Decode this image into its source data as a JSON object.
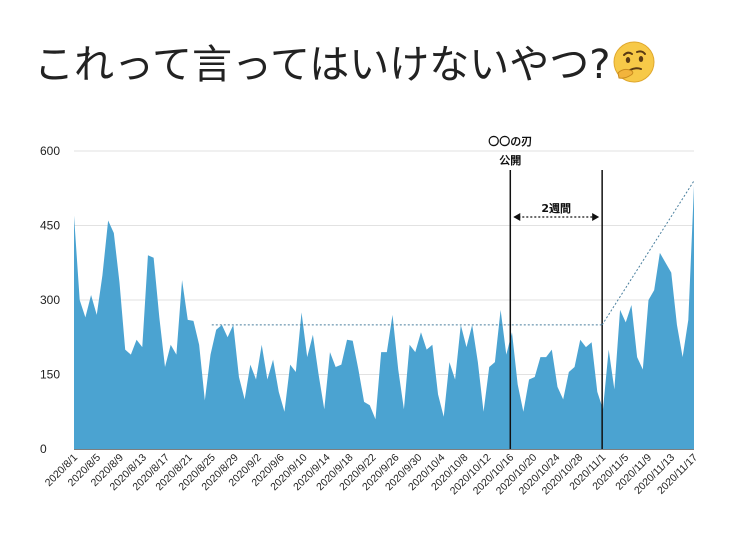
{
  "slide": {
    "title": "これって言ってはいけないやつ?",
    "emoji_icon": "thinking-face-icon"
  },
  "chart_data": {
    "type": "area",
    "title": "",
    "xlabel": "",
    "ylabel": "",
    "ylim": [
      0,
      600
    ],
    "yticks": [
      0,
      150,
      300,
      450,
      600
    ],
    "grid": true,
    "fill_color": "#4ba3d1",
    "x_tick_labels": [
      "2020/8/1",
      "2020/8/5",
      "2020/8/9",
      "2020/8/13",
      "2020/8/17",
      "2020/8/21",
      "2020/8/25",
      "2020/8/29",
      "2020/9/2",
      "2020/9/6",
      "2020/9/10",
      "2020/9/14",
      "2020/9/18",
      "2020/9/22",
      "2020/9/26",
      "2020/9/30",
      "2020/10/4",
      "2020/10/8",
      "2020/10/12",
      "2020/10/16",
      "2020/10/20",
      "2020/10/24",
      "2020/10/28",
      "2020/11/1",
      "2020/11/5",
      "2020/11/9",
      "2020/11/13",
      "2020/11/17"
    ],
    "x_start": "2020/8/1",
    "x_end": "2020/11/17",
    "values": [
      470,
      300,
      265,
      310,
      270,
      350,
      460,
      435,
      335,
      200,
      190,
      220,
      205,
      390,
      385,
      265,
      165,
      210,
      190,
      340,
      260,
      258,
      210,
      98,
      190,
      240,
      250,
      225,
      250,
      145,
      100,
      170,
      140,
      210,
      140,
      180,
      115,
      75,
      170,
      155,
      275,
      185,
      230,
      150,
      80,
      195,
      165,
      170,
      220,
      218,
      160,
      95,
      88,
      60,
      195,
      195,
      270,
      160,
      80,
      210,
      195,
      235,
      200,
      210,
      110,
      65,
      175,
      140,
      250,
      205,
      250,
      175,
      75,
      165,
      175,
      280,
      190,
      235,
      130,
      75,
      140,
      145,
      185,
      185,
      200,
      125,
      100,
      155,
      165,
      220,
      205,
      215,
      115,
      80,
      200,
      120,
      280,
      255,
      290,
      185,
      160,
      300,
      320,
      395,
      375,
      355,
      250,
      185,
      260,
      530
    ],
    "annotations": {
      "release_label_line1": "〇〇の刃",
      "release_label_line2": "公開",
      "release_date": "2020/10/16",
      "second_line_date": "2020/11/1",
      "interval_label": "2週間",
      "baseline_value": 250,
      "trend_start_date": "2020/11/1",
      "trend_start_value": 250,
      "trend_end_date": "2020/11/17",
      "trend_end_value": 540
    }
  }
}
